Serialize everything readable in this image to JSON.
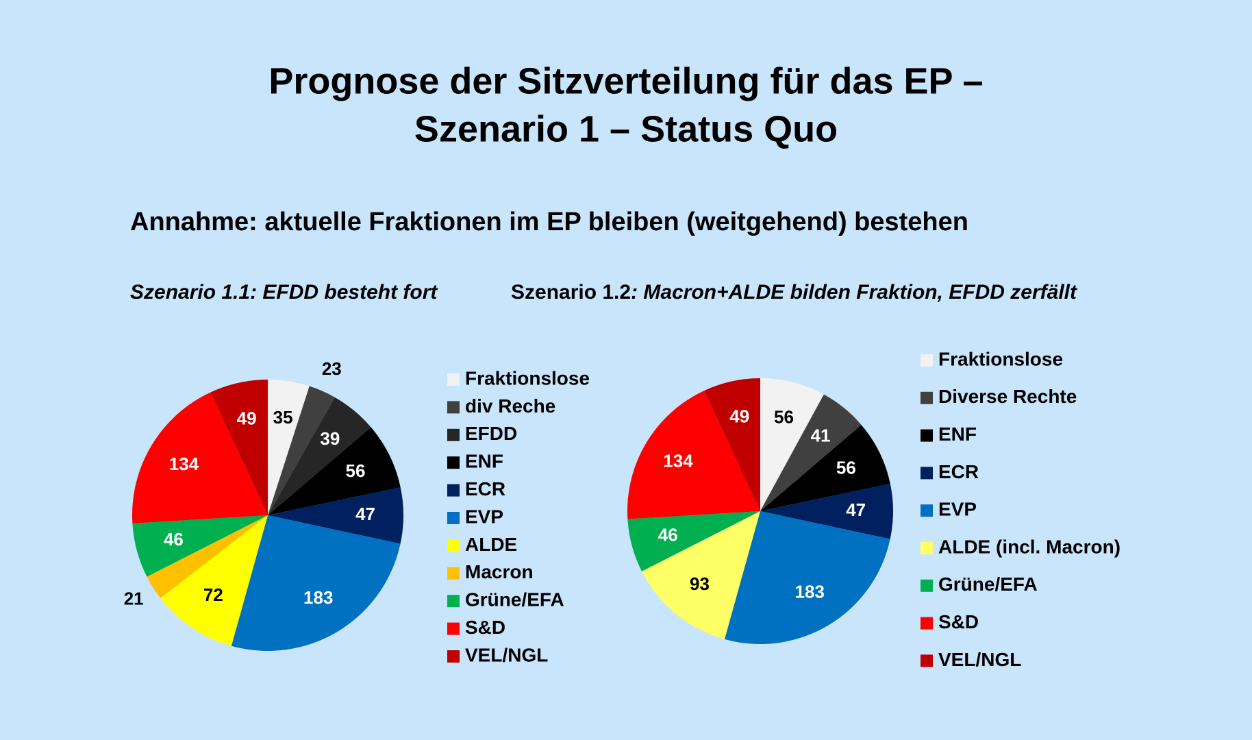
{
  "header": {
    "title": [
      "Prognose der Sitzverteilung für das EP –",
      "Szenario 1 – Status Quo"
    ],
    "assumption": "Annahme: aktuelle Fraktionen im EP bleiben (weitgehend) bestehen"
  },
  "chart_data": [
    {
      "type": "pie",
      "title_parts": [
        "Szenario 1.1: EFDD besteht fort"
      ],
      "categories": [
        "Fraktionslose",
        "div Reche",
        "EFDD",
        "ENF",
        "ECR",
        "EVP",
        "ALDE",
        "Macron",
        "Grüne/EFA",
        "S&D",
        "VEL/NGL"
      ],
      "values": [
        35,
        23,
        39,
        56,
        47,
        183,
        72,
        21,
        46,
        134,
        49
      ],
      "colors": [
        "#f2f2f2",
        "#404040",
        "#262626",
        "#000000",
        "#002060",
        "#0070c0",
        "#ffff00",
        "#ffc000",
        "#00b050",
        "#ff0000",
        "#c00000"
      ]
    },
    {
      "type": "pie",
      "title_parts": [
        "Szenario 1.2",
        ": Macron+ALDE bilden Fraktion, EFDD zerfällt"
      ],
      "categories": [
        "Fraktionslose",
        "Diverse Rechte",
        "ENF",
        "ECR",
        "EVP",
        "ALDE (incl. Macron)",
        "Grüne/EFA",
        "S&D",
        "VEL/NGL"
      ],
      "values": [
        56,
        41,
        56,
        47,
        183,
        93,
        46,
        134,
        49
      ],
      "colors": [
        "#f2f2f2",
        "#404040",
        "#000000",
        "#002060",
        "#0070c0",
        "#ffff66",
        "#00b050",
        "#ff0000",
        "#c00000"
      ]
    }
  ]
}
